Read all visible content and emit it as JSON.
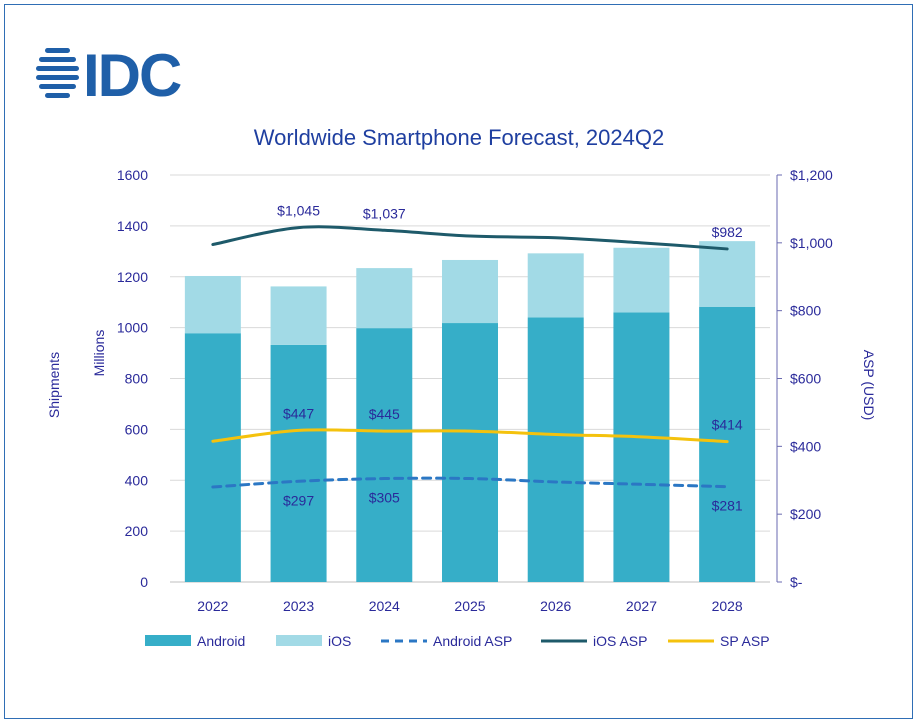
{
  "logo": {
    "text": "IDC",
    "color": "#1f5fa8"
  },
  "colors": {
    "android": "#36aec8",
    "ios": "#a2dae6",
    "android_asp": "#2b77c4",
    "ios_asp": "#1e5a6a",
    "sp_asp": "#f4c20d",
    "axis_text": "#2a2a9a",
    "grid": "#d9d9d9"
  },
  "chart_data": {
    "type": "bar",
    "title": "Worldwide Smartphone Forecast, 2024Q2",
    "categories": [
      "2022",
      "2023",
      "2024",
      "2025",
      "2026",
      "2027",
      "2028"
    ],
    "series": [
      {
        "name": "Android",
        "kind": "stacked-bar",
        "axis": "left",
        "values": [
          978,
          932,
          998,
          1018,
          1040,
          1060,
          1082
        ]
      },
      {
        "name": "iOS",
        "kind": "stacked-bar",
        "axis": "left",
        "values": [
          225,
          230,
          236,
          248,
          252,
          254,
          258
        ]
      },
      {
        "name": "Android ASP",
        "kind": "dashed-line",
        "axis": "right",
        "values": [
          280,
          297,
          305,
          305,
          295,
          288,
          281
        ]
      },
      {
        "name": "iOS ASP",
        "kind": "line",
        "axis": "right",
        "values": [
          995,
          1045,
          1037,
          1020,
          1015,
          1000,
          982
        ]
      },
      {
        "name": "SP ASP",
        "kind": "line",
        "axis": "right",
        "values": [
          415,
          447,
          445,
          445,
          435,
          428,
          414
        ]
      }
    ],
    "ylabel": "Shipments",
    "ylabel_sub": "Millions",
    "ylim": [
      0,
      1600
    ],
    "yticks": [
      "0",
      "200",
      "400",
      "600",
      "800",
      "1000",
      "1200",
      "1400",
      "1600"
    ],
    "y2label": "ASP (USD)",
    "y2lim": [
      0,
      1200
    ],
    "y2ticks": [
      "$-",
      "$200",
      "$400",
      "$600",
      "$800",
      "$1,000",
      "$1,200"
    ],
    "annotations": [
      {
        "series": "iOS ASP",
        "category": "2023",
        "text": "$1,045",
        "position": "above"
      },
      {
        "series": "iOS ASP",
        "category": "2024",
        "text": "$1,037",
        "position": "above"
      },
      {
        "series": "iOS ASP",
        "category": "2028",
        "text": "$982",
        "position": "above"
      },
      {
        "series": "SP ASP",
        "category": "2023",
        "text": "$447",
        "position": "above"
      },
      {
        "series": "SP ASP",
        "category": "2024",
        "text": "$445",
        "position": "above"
      },
      {
        "series": "SP ASP",
        "category": "2028",
        "text": "$414",
        "position": "above"
      },
      {
        "series": "Android ASP",
        "category": "2023",
        "text": "$297",
        "position": "below"
      },
      {
        "series": "Android ASP",
        "category": "2024",
        "text": "$305",
        "position": "below"
      },
      {
        "series": "Android ASP",
        "category": "2028",
        "text": "$281",
        "position": "below"
      }
    ],
    "legend": {
      "position": "bottom",
      "entries": [
        "Android",
        "iOS",
        "Android ASP",
        "iOS ASP",
        "SP ASP"
      ]
    },
    "grid": true
  }
}
